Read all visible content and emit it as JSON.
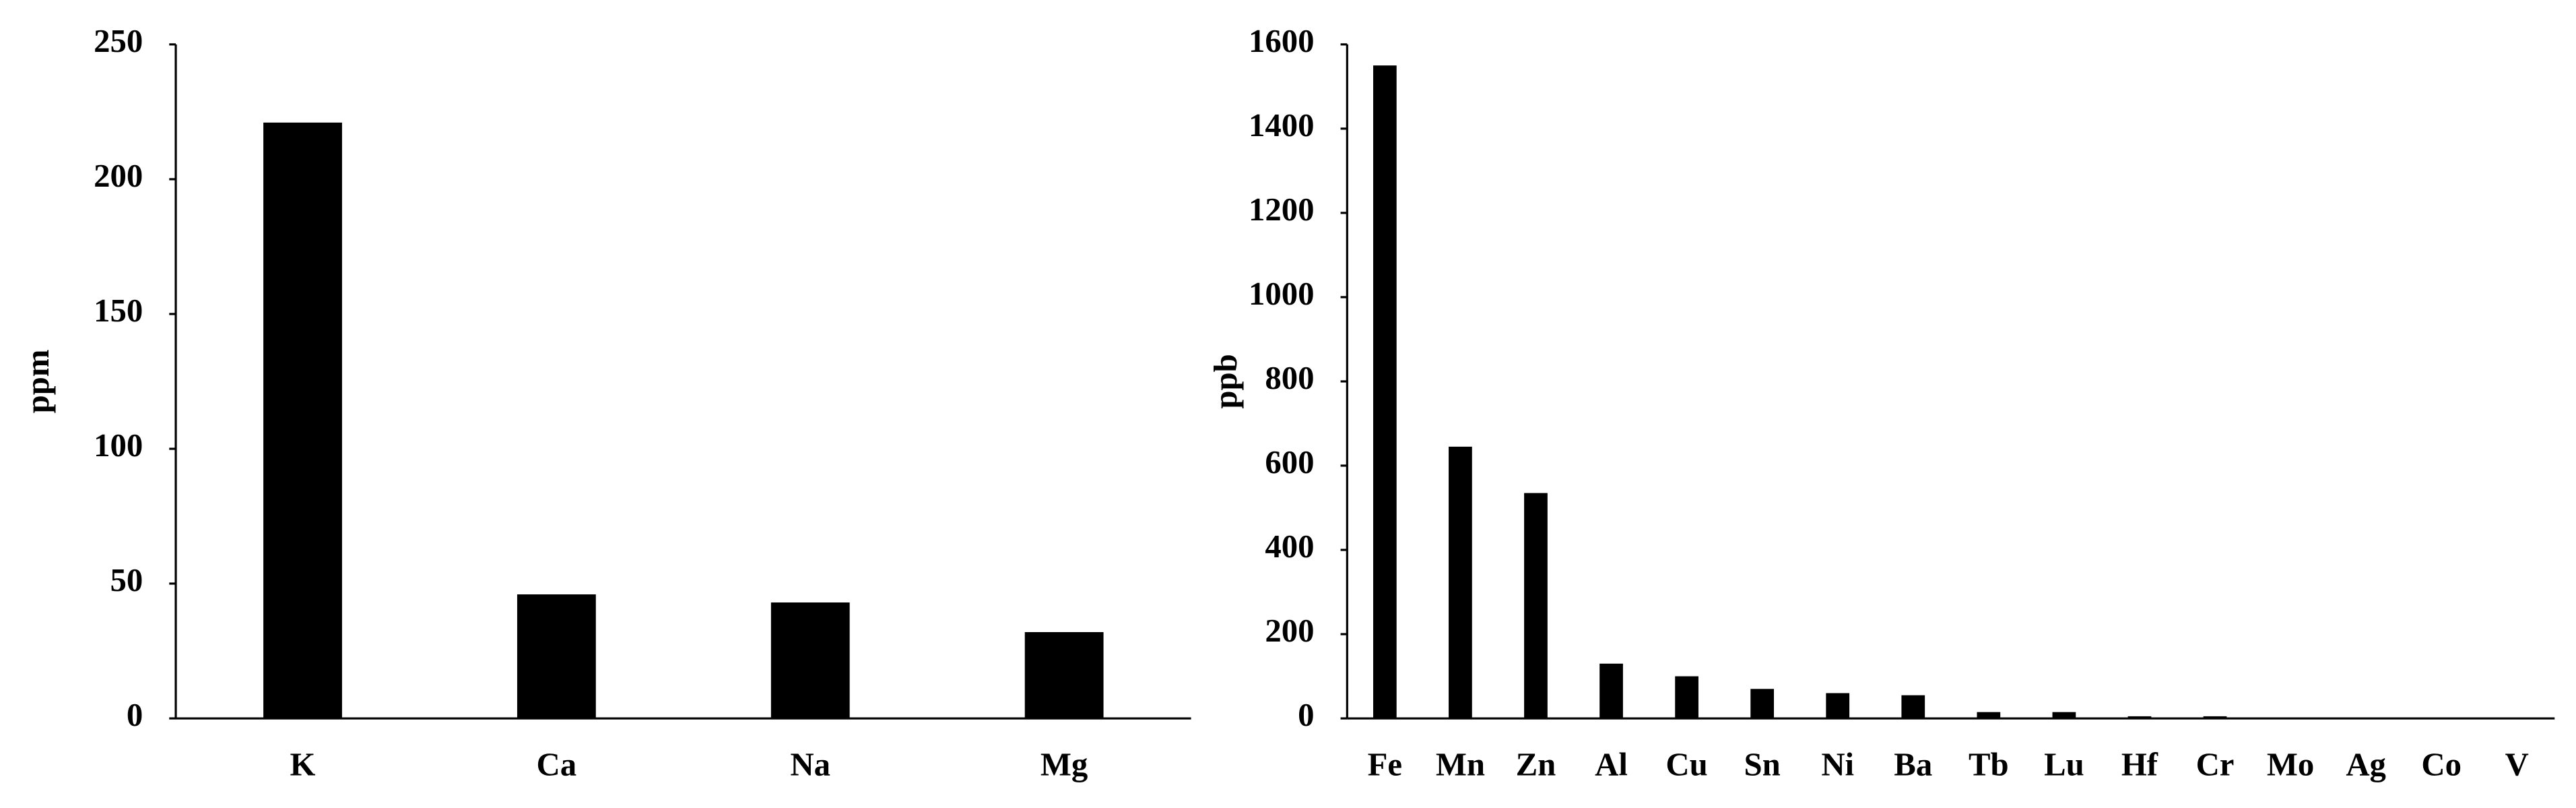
{
  "chart_data": [
    {
      "type": "bar",
      "y_label": "ppm",
      "categories": [
        "K",
        "Ca",
        "Na",
        "Mg"
      ],
      "values": [
        221,
        46,
        43,
        32
      ],
      "color": "#000000",
      "ylim": [
        0,
        250
      ],
      "yticks": [
        0,
        50,
        100,
        150,
        200,
        250
      ],
      "grid": false
    },
    {
      "type": "bar",
      "y_label": "ppb",
      "categories": [
        "Fe",
        "Mn",
        "Zn",
        "Al",
        "Cu",
        "Sn",
        "Ni",
        "Ba",
        "Tb",
        "Lu",
        "Hf",
        "Cr",
        "Mo",
        "Ag",
        "Co",
        "V"
      ],
      "values": [
        1550,
        645,
        535,
        130,
        100,
        70,
        60,
        55,
        15,
        15,
        5,
        5,
        2,
        1,
        1,
        0.5
      ],
      "color": "#000000",
      "ylim": [
        0,
        1600
      ],
      "yticks": [
        0,
        200,
        400,
        600,
        800,
        1000,
        1200,
        1400,
        1600
      ],
      "grid": false
    }
  ]
}
